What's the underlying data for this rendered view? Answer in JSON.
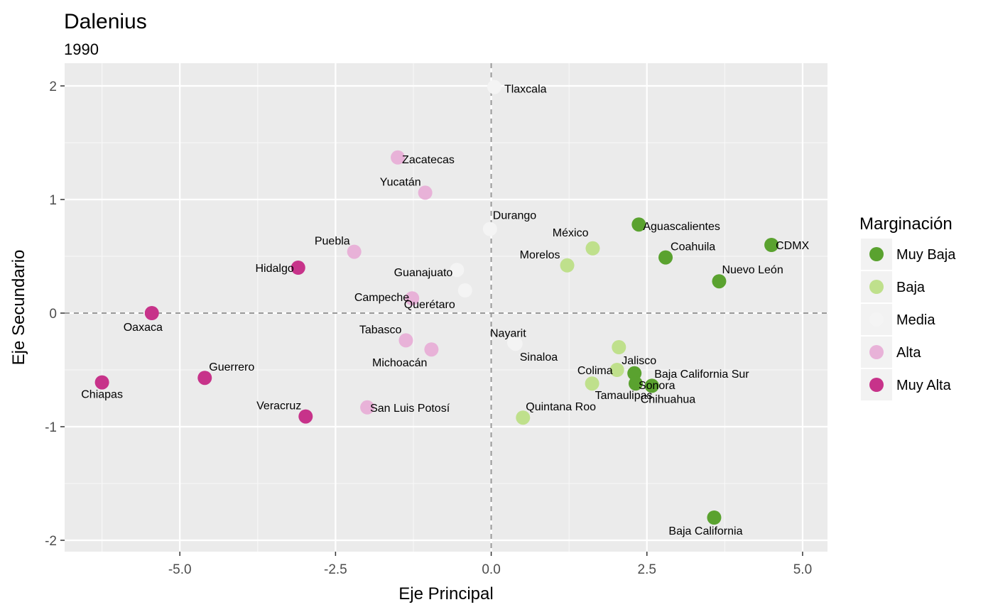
{
  "chart_data": {
    "type": "scatter",
    "title": "Dalenius",
    "subtitle": "1990",
    "xlabel": "Eje Principal",
    "ylabel": "Eje Secundario",
    "xlim": [
      -6.85,
      5.4
    ],
    "ylim": [
      -2.1,
      2.2
    ],
    "xticks": [
      -5.0,
      -2.5,
      0.0,
      2.5,
      5.0
    ],
    "xtick_labels": [
      "-5.0",
      "-2.5",
      "0.0",
      "2.5",
      "5.0"
    ],
    "yticks": [
      -2,
      -1,
      0,
      1,
      2
    ],
    "ytick_labels": [
      "-2",
      "-1",
      "0",
      "1",
      "2"
    ],
    "reference_lines": {
      "x": 0,
      "y": 0,
      "style": "dashed"
    },
    "grid": true,
    "legend": {
      "title": "Marginación",
      "position": "right",
      "entries": [
        {
          "label": "Muy Baja",
          "color": "#5aa22f"
        },
        {
          "label": "Baja",
          "color": "#bfe08c"
        },
        {
          "label": "Media",
          "color": "#f4f4f4"
        },
        {
          "label": "Alta",
          "color": "#e8b2d8"
        },
        {
          "label": "Muy Alta",
          "color": "#c7338a"
        }
      ]
    },
    "points": [
      {
        "label": "Tlaxcala",
        "x": 0.05,
        "y": 1.99,
        "group": "Media"
      },
      {
        "label": "Zacatecas",
        "x": -1.5,
        "y": 1.37,
        "group": "Alta"
      },
      {
        "label": "Yucatán",
        "x": -1.06,
        "y": 1.06,
        "group": "Alta"
      },
      {
        "label": "Durango",
        "x": -0.02,
        "y": 0.74,
        "group": "Media"
      },
      {
        "label": "Aguascalientes",
        "x": 2.37,
        "y": 0.78,
        "group": "Muy Baja"
      },
      {
        "label": "CDMX",
        "x": 4.5,
        "y": 0.6,
        "group": "Muy Baja"
      },
      {
        "label": "México",
        "x": 1.63,
        "y": 0.57,
        "group": "Baja"
      },
      {
        "label": "Morelos",
        "x": 1.22,
        "y": 0.42,
        "group": "Baja"
      },
      {
        "label": "Coahuila",
        "x": 2.8,
        "y": 0.49,
        "group": "Muy Baja"
      },
      {
        "label": "Nuevo León",
        "x": 3.66,
        "y": 0.28,
        "group": "Muy Baja"
      },
      {
        "label": "Puebla",
        "x": -2.2,
        "y": 0.54,
        "group": "Alta"
      },
      {
        "label": "Hidalgo",
        "x": -3.1,
        "y": 0.4,
        "group": "Muy Alta"
      },
      {
        "label": "Guanajuato",
        "x": -0.55,
        "y": 0.38,
        "group": "Media"
      },
      {
        "label": "Querétaro",
        "x": -0.42,
        "y": 0.2,
        "group": "Media"
      },
      {
        "label": "Campeche",
        "x": -1.27,
        "y": 0.13,
        "group": "Alta"
      },
      {
        "label": "Oaxaca",
        "x": -5.45,
        "y": 0.0,
        "group": "Muy Alta"
      },
      {
        "label": "Tabasco",
        "x": -1.37,
        "y": -0.24,
        "group": "Alta"
      },
      {
        "label": "Michoacán",
        "x": -0.96,
        "y": -0.32,
        "group": "Alta"
      },
      {
        "label": "Nayarit",
        "x": 0.37,
        "y": -0.26,
        "group": "Media"
      },
      {
        "label": "Sinaloa",
        "x": 0.39,
        "y": -0.27,
        "group": "Media"
      },
      {
        "label": "Jalisco",
        "x": 2.05,
        "y": -0.3,
        "group": "Baja"
      },
      {
        "label": "Colima",
        "x": 2.02,
        "y": -0.5,
        "group": "Baja"
      },
      {
        "label": "Baja California Sur",
        "x": 2.3,
        "y": -0.53,
        "group": "Muy Baja"
      },
      {
        "label": "Tamaulipas",
        "x": 1.62,
        "y": -0.62,
        "group": "Baja"
      },
      {
        "label": "Sonora",
        "x": 2.32,
        "y": -0.62,
        "group": "Muy Baja"
      },
      {
        "label": "Chihuahua",
        "x": 2.58,
        "y": -0.64,
        "group": "Muy Baja"
      },
      {
        "label": "Guerrero",
        "x": -4.6,
        "y": -0.57,
        "group": "Muy Alta"
      },
      {
        "label": "Chiapas",
        "x": -6.25,
        "y": -0.61,
        "group": "Muy Alta"
      },
      {
        "label": "Veracruz",
        "x": -2.98,
        "y": -0.91,
        "group": "Muy Alta"
      },
      {
        "label": "San Luis Potosí",
        "x": -1.99,
        "y": -0.83,
        "group": "Alta"
      },
      {
        "label": "Quintana Roo",
        "x": 0.51,
        "y": -0.92,
        "group": "Baja"
      },
      {
        "label": "Baja California",
        "x": 3.58,
        "y": -1.8,
        "group": "Muy Baja"
      }
    ]
  }
}
